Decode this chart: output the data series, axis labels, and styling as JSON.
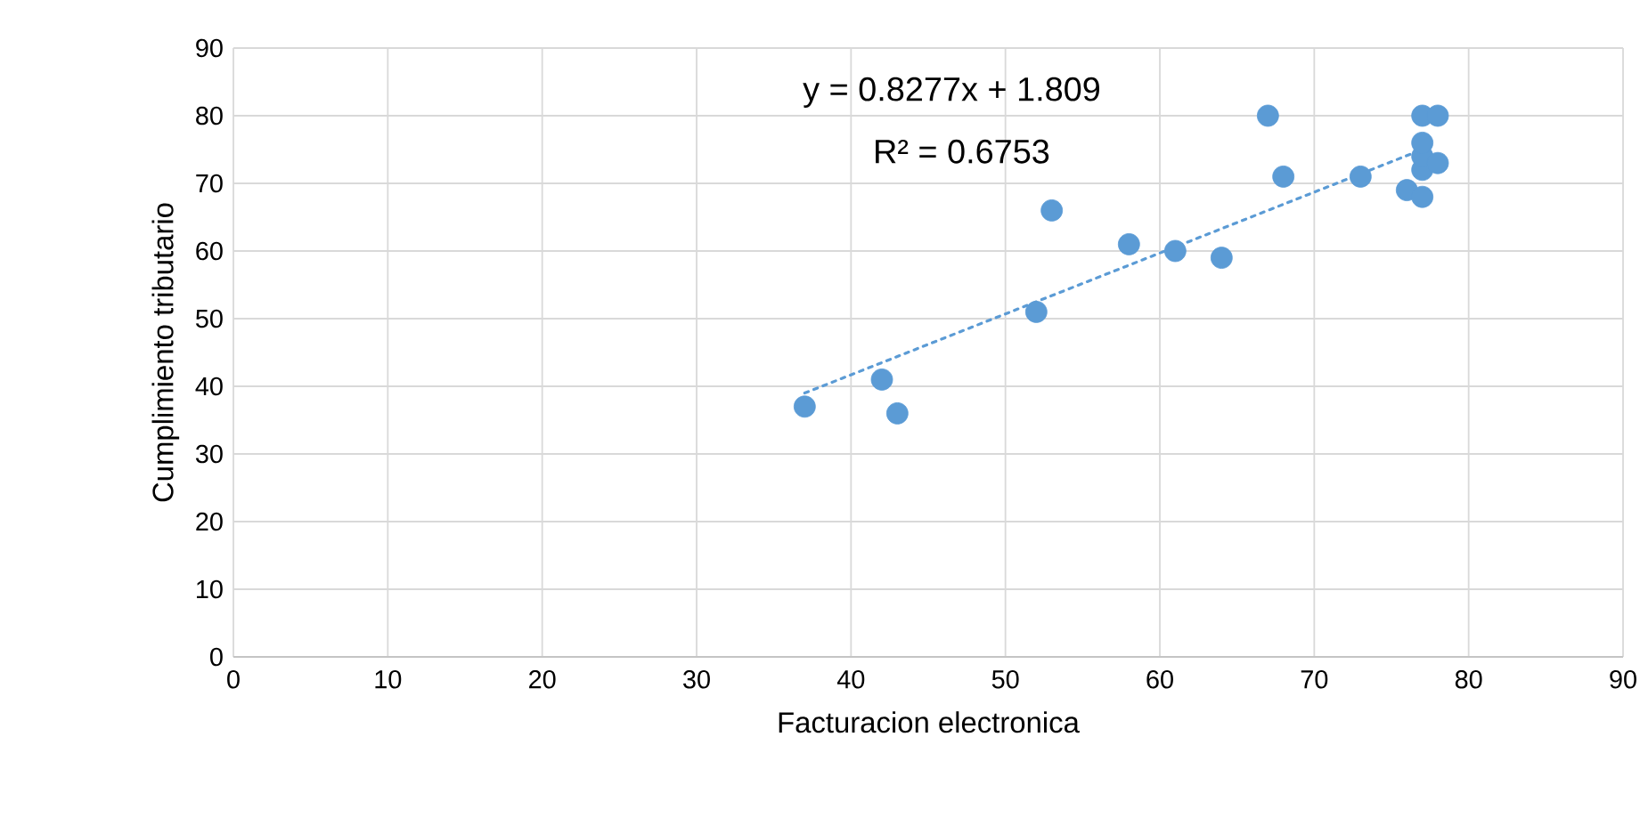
{
  "chart_data": {
    "type": "scatter",
    "xlabel": "Facturacion electronica",
    "ylabel": "Cumplimiento tributario",
    "xlim": [
      0,
      90
    ],
    "ylim": [
      0,
      90
    ],
    "xticks": [
      0,
      10,
      20,
      30,
      40,
      50,
      60,
      70,
      80,
      90
    ],
    "yticks": [
      0,
      10,
      20,
      30,
      40,
      50,
      60,
      70,
      80,
      90
    ],
    "grid": true,
    "marker": "circle",
    "series": [
      {
        "color": "#5b9bd5",
        "x": [
          37,
          42,
          43,
          52,
          53,
          58,
          61,
          64,
          67,
          68,
          73,
          76,
          77,
          77,
          77,
          77,
          77,
          78,
          78
        ],
        "values": [
          37,
          41,
          36,
          51,
          66,
          61,
          60,
          59,
          80,
          71,
          71,
          69,
          68,
          72,
          74,
          76,
          80,
          80,
          73
        ]
      },
      {
        "type": "line",
        "color": "#5b9bd5",
        "line_style": "dotted",
        "marker": "none",
        "x": [
          37,
          77
        ],
        "values": [
          39,
          75
        ]
      }
    ],
    "annotations": [
      "y = 0.8277x + 1.809",
      "R² = 0.6753"
    ]
  }
}
